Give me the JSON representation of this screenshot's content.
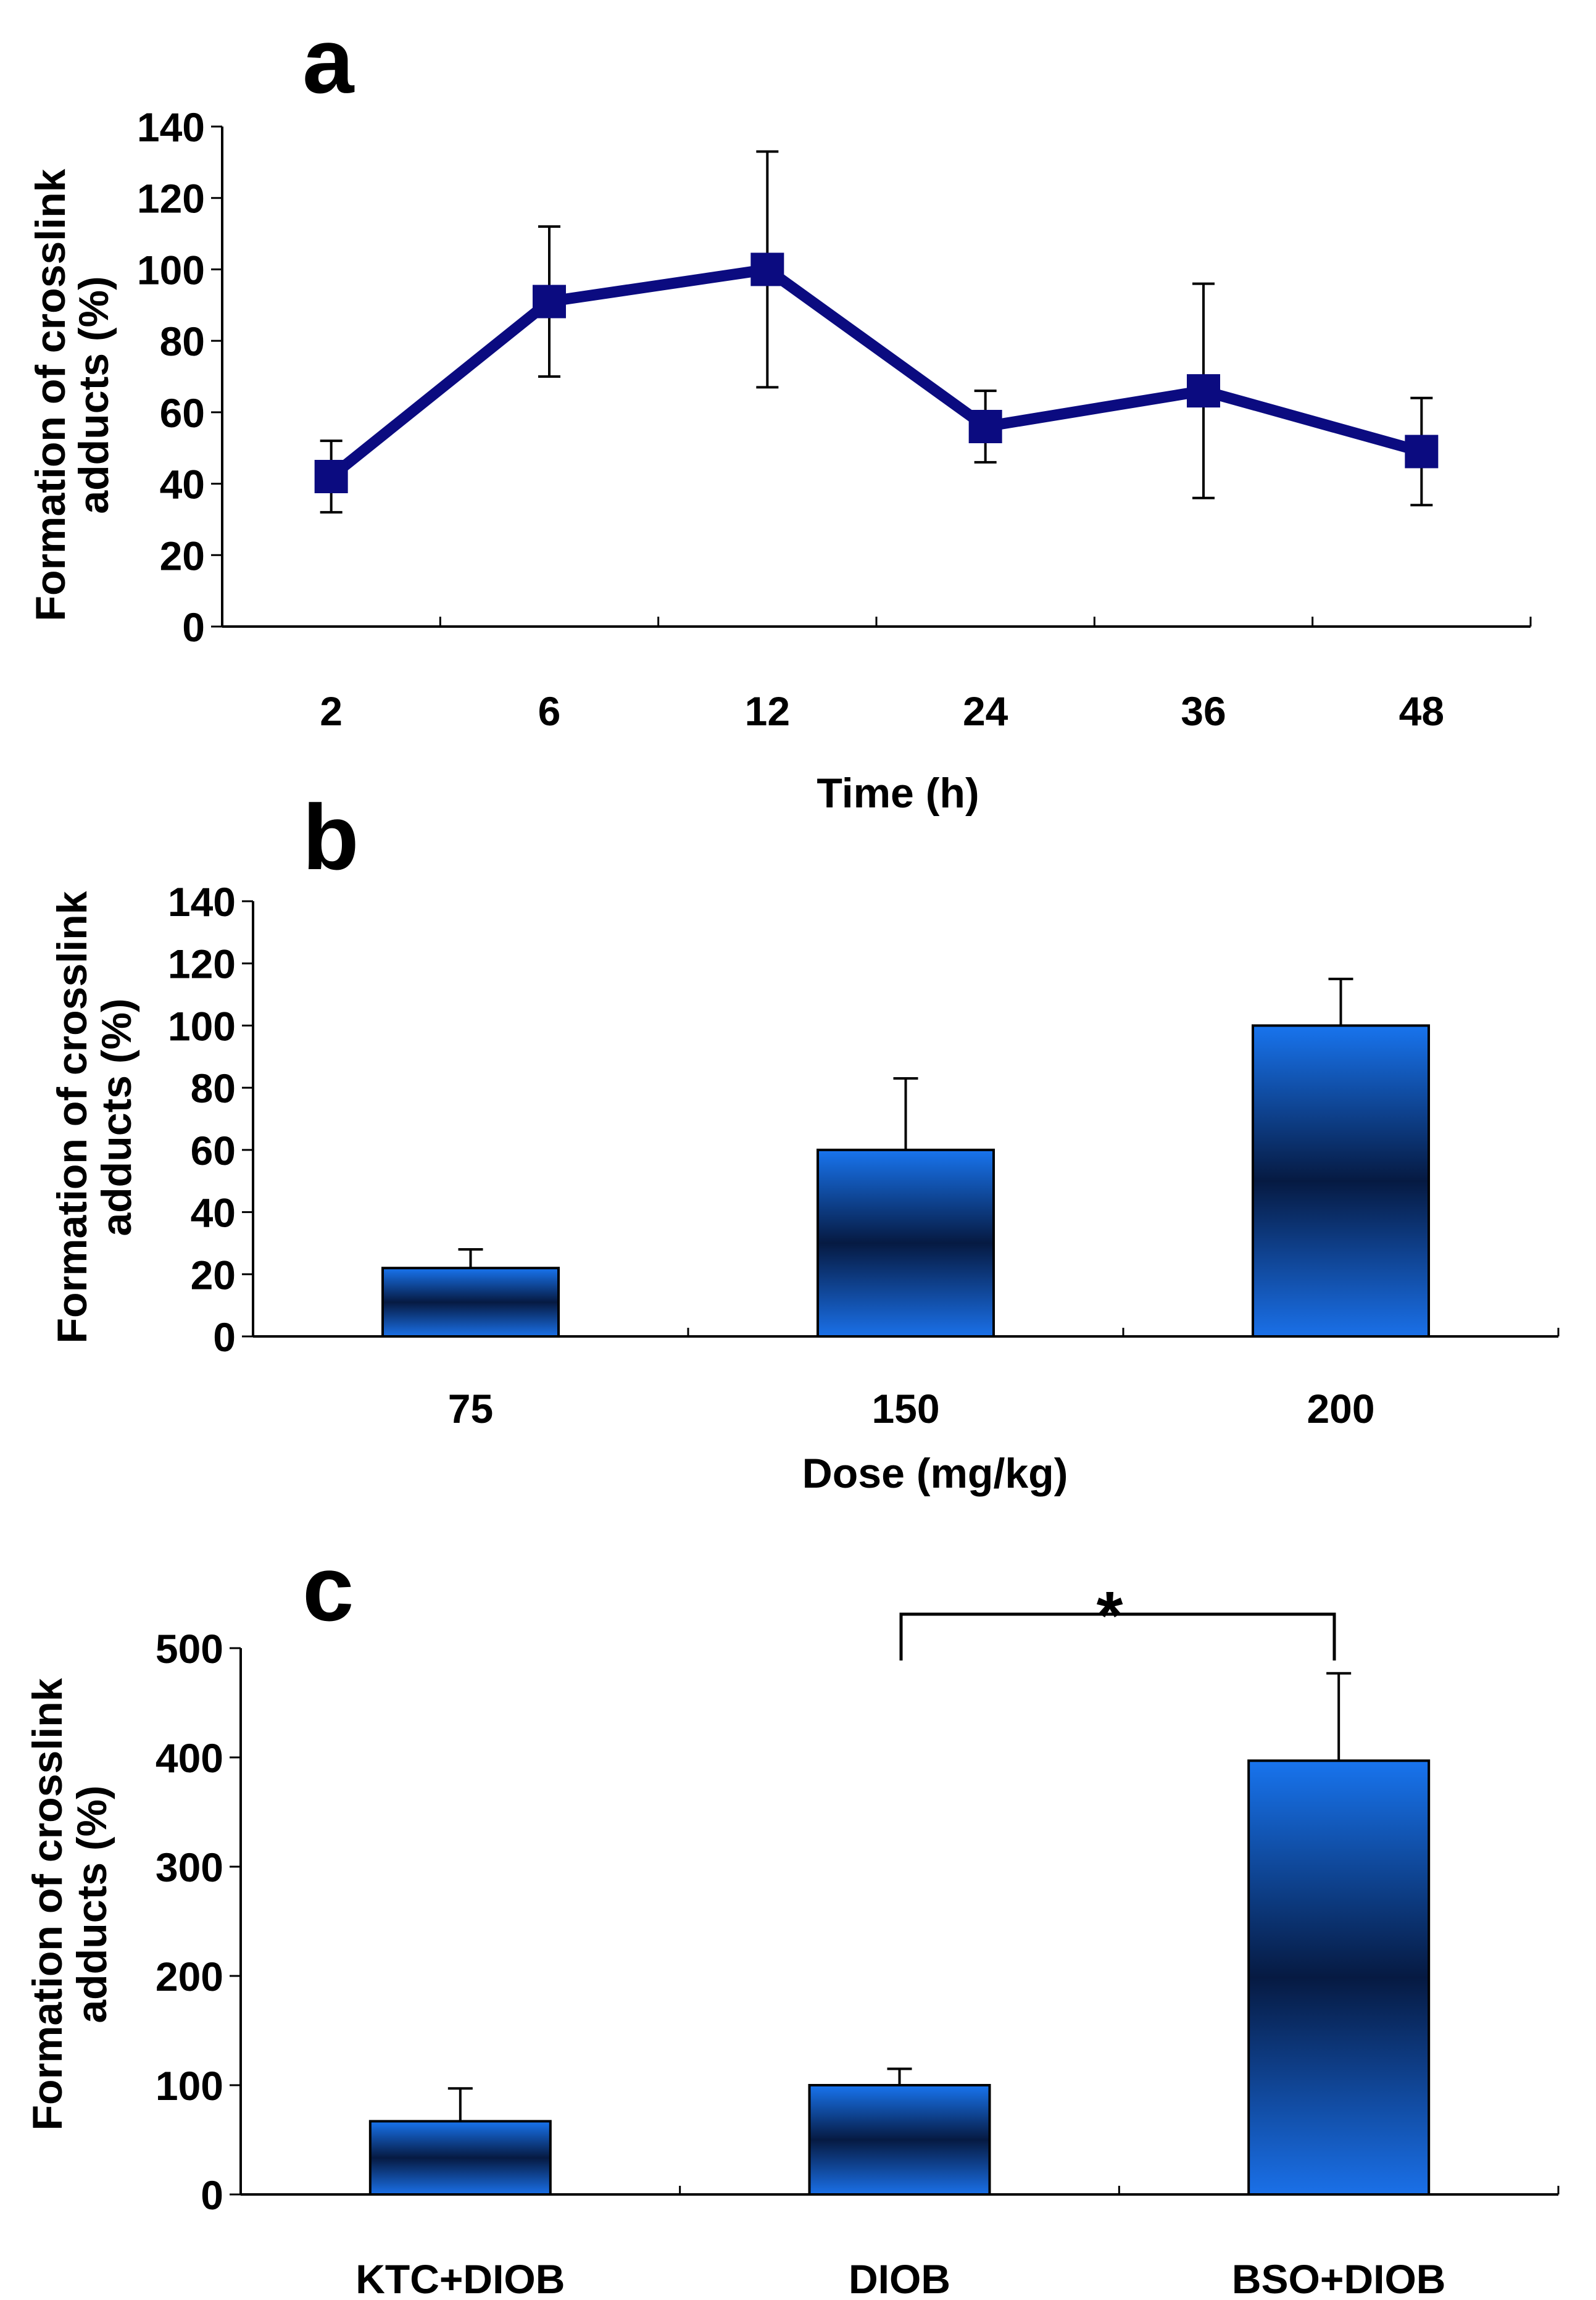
{
  "chart_data": [
    {
      "panel": "a",
      "type": "line",
      "categories": [
        "2",
        "6",
        "12",
        "24",
        "36",
        "48"
      ],
      "series": [
        {
          "name": "Formation of crosslink adducts",
          "values": [
            42,
            91,
            100,
            56,
            66,
            49
          ],
          "error": [
            10,
            21,
            33,
            10,
            30,
            15
          ]
        }
      ],
      "xlabel": "Time (h)",
      "ylabel_lines": [
        "Formation of crosslink",
        "adducts (%)"
      ],
      "ylim": [
        0,
        140
      ],
      "yticks": [
        "0",
        "20",
        "40",
        "60",
        "80",
        "100",
        "120",
        "140"
      ],
      "color": "#0b0b80"
    },
    {
      "panel": "b",
      "type": "bar",
      "categories": [
        "75",
        "150",
        "200"
      ],
      "values": [
        22,
        60,
        100
      ],
      "error": [
        6,
        23,
        15
      ],
      "xlabel": "Dose (mg/kg)",
      "ylabel_lines": [
        "Formation of crosslink",
        "adducts (%)"
      ],
      "ylim": [
        0,
        140
      ],
      "yticks": [
        "0",
        "20",
        "40",
        "60",
        "80",
        "100",
        "120",
        "140"
      ],
      "color": "#1a6cf0"
    },
    {
      "panel": "c",
      "type": "bar",
      "categories": [
        "KTC+DIOB",
        "DIOB",
        "BSO+DIOB"
      ],
      "values": [
        67,
        100,
        397
      ],
      "error": [
        30,
        15,
        80
      ],
      "xlabel": "",
      "ylabel_lines": [
        "Formation of crosslink",
        "adducts (%)"
      ],
      "ylim": [
        0,
        500
      ],
      "yticks": [
        "0",
        "100",
        "200",
        "300",
        "400",
        "500"
      ],
      "significance": {
        "between": [
          "DIOB",
          "BSO+DIOB"
        ],
        "label": "*"
      },
      "color": "#1a6cf0"
    }
  ]
}
